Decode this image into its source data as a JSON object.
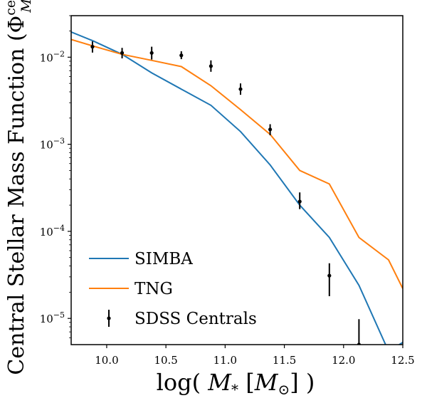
{
  "chart_data": {
    "type": "line",
    "xlabel": "log( M* [M⊙] )",
    "ylabel": "Central Stellar Mass Function (Φcen M*)",
    "xlim": [
      9.7,
      12.5
    ],
    "ylim": [
      5e-06,
      0.03
    ],
    "yscale": "log",
    "grid": false,
    "legend_position": "bottom-left",
    "x_ticks": [
      {
        "value": 10.0,
        "label": "10.0"
      },
      {
        "value": 10.5,
        "label": "10.5"
      },
      {
        "value": 11.0,
        "label": "11.0"
      },
      {
        "value": 11.5,
        "label": "11.5"
      },
      {
        "value": 12.0,
        "label": "12.0"
      },
      {
        "value": 12.5,
        "label": "12.5"
      }
    ],
    "y_ticks": [
      {
        "value": 0.01,
        "base": "10",
        "exp": "−2"
      },
      {
        "value": 0.001,
        "base": "10",
        "exp": "−3"
      },
      {
        "value": 0.0001,
        "base": "10",
        "exp": "−4"
      },
      {
        "value": 1e-05,
        "base": "10",
        "exp": "−5"
      }
    ],
    "series": [
      {
        "name": "SIMBA",
        "color": "#1f77b4",
        "kind": "line",
        "x": [
          9.7,
          9.88,
          10.13,
          10.38,
          10.63,
          10.88,
          11.13,
          11.38,
          11.63,
          11.88,
          12.13,
          12.38,
          12.5
        ],
        "y": [
          0.0195,
          0.0155,
          0.0108,
          0.0066,
          0.0043,
          0.0028,
          0.0014,
          0.00058,
          0.0002,
          8.5e-05,
          2.4e-05,
          4.2e-06,
          5.3e-06
        ]
      },
      {
        "name": "TNG",
        "color": "#ff7f0e",
        "kind": "line",
        "x": [
          9.7,
          9.88,
          10.13,
          10.38,
          10.63,
          10.88,
          11.13,
          11.38,
          11.63,
          11.88,
          12.13,
          12.38,
          12.5
        ],
        "y": [
          0.016,
          0.0135,
          0.0108,
          0.0092,
          0.0078,
          0.0047,
          0.0025,
          0.0013,
          0.0005,
          0.00035,
          8.5e-05,
          4.7e-05,
          2.2e-05
        ]
      },
      {
        "name": "SDSS Centrals",
        "color": "#000000",
        "kind": "errorbar",
        "x": [
          9.88,
          10.13,
          10.38,
          10.63,
          10.88,
          11.13,
          11.38,
          11.63,
          11.88,
          12.13
        ],
        "y": [
          0.0132,
          0.0112,
          0.0112,
          0.0105,
          0.0079,
          0.0043,
          0.00148,
          0.00022,
          3.1e-05,
          5e-06
        ],
        "y_low": [
          0.0113,
          0.0097,
          0.0094,
          0.0095,
          0.0068,
          0.0037,
          0.00127,
          0.00018,
          1.8e-05,
          3e-06
        ],
        "y_high": [
          0.0152,
          0.0128,
          0.0132,
          0.0117,
          0.0092,
          0.005,
          0.0017,
          0.00028,
          4.3e-05,
          9.8e-06
        ]
      }
    ]
  }
}
